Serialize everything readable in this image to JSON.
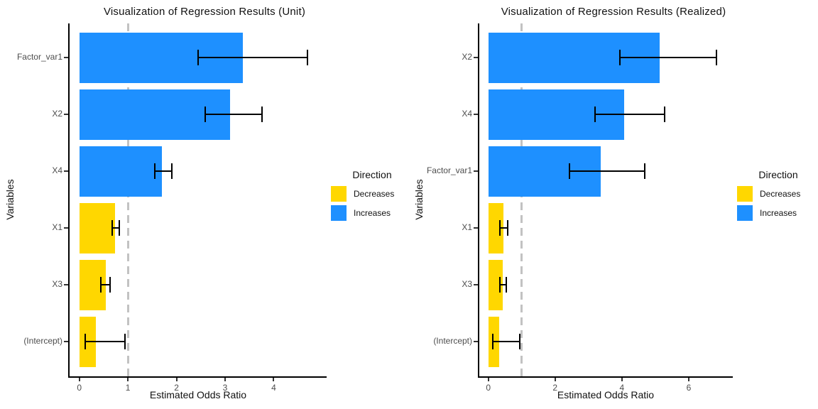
{
  "page": {
    "background": "#ffffff"
  },
  "colors": {
    "increase": "#1e90ff",
    "decrease": "#ffd700",
    "reference_line": "#c2c2c2",
    "axis": "#000000",
    "tick_text": "#4d4d4d"
  },
  "chart_data": [
    {
      "type": "bar",
      "orientation": "horizontal",
      "title": "Visualization of Regression Results (Unit)",
      "xlabel": "Estimated Odds Ratio",
      "ylabel": "Variables",
      "xlim": [
        -0.2,
        5.09
      ],
      "x_ticks": [
        0,
        1,
        2,
        3,
        4
      ],
      "reference_line_x": 1,
      "grid": "off",
      "legend": {
        "position": "right",
        "title": "Direction",
        "items": [
          {
            "label": "Decreases",
            "color": "#ffd700"
          },
          {
            "label": "Increases",
            "color": "#1e90ff"
          }
        ]
      },
      "categories": [
        "Factor_var1",
        "X2",
        "X4",
        "X1",
        "X3",
        "(Intercept)"
      ],
      "values": [
        3.37,
        3.1,
        1.7,
        0.73,
        0.55,
        0.34
      ],
      "ci_low": [
        2.44,
        2.59,
        1.55,
        0.68,
        0.45,
        0.12
      ],
      "ci_high": [
        4.69,
        3.76,
        1.9,
        0.82,
        0.63,
        0.94
      ],
      "direction": [
        "Increases",
        "Increases",
        "Increases",
        "Decreases",
        "Decreases",
        "Decreases"
      ]
    },
    {
      "type": "bar",
      "orientation": "horizontal",
      "title": "Visualization of Regression Results (Realized)",
      "xlabel": "Estimated Odds Ratio",
      "ylabel": "Variables",
      "xlim": [
        -0.27,
        7.32
      ],
      "x_ticks": [
        0,
        2,
        4,
        6
      ],
      "reference_line_x": 1,
      "grid": "off",
      "legend": {
        "position": "right",
        "title": "Direction",
        "items": [
          {
            "label": "Decreases",
            "color": "#ffd700"
          },
          {
            "label": "Increases",
            "color": "#1e90ff"
          }
        ]
      },
      "categories": [
        "X2",
        "X4",
        "Factor_var1",
        "X1",
        "X3",
        "(Intercept)"
      ],
      "values": [
        5.13,
        4.07,
        3.36,
        0.45,
        0.43,
        0.33
      ],
      "ci_low": [
        3.94,
        3.19,
        2.44,
        0.35,
        0.34,
        0.13
      ],
      "ci_high": [
        6.83,
        5.28,
        4.69,
        0.58,
        0.53,
        0.94
      ],
      "direction": [
        "Increases",
        "Increases",
        "Increases",
        "Decreases",
        "Decreases",
        "Decreases"
      ]
    }
  ]
}
